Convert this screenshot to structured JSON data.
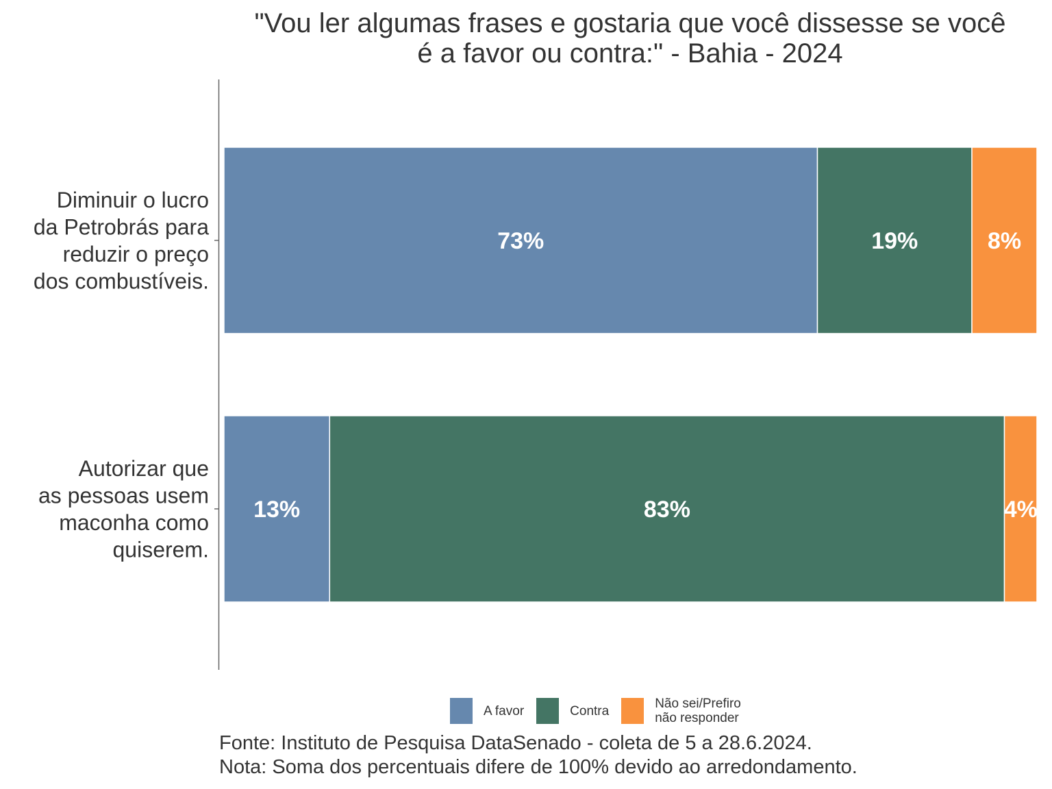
{
  "title": {
    "line1": "\"Vou ler algumas frases e gostaria que você dissesse se você",
    "line2": "é a favor ou contra:\" - Bahia - 2024"
  },
  "chart_data": {
    "type": "bar",
    "orientation": "horizontal",
    "stacked": true,
    "categories": [
      [
        "Diminuir o lucro",
        "da Petrobrás para",
        "reduzir o preço",
        "dos combustíveis."
      ],
      [
        "Autorizar que",
        "as pessoas usem",
        "maconha como",
        "quiserem."
      ]
    ],
    "series": [
      {
        "name": "A favor",
        "values": [
          73,
          13
        ],
        "color": "#6688ae"
      },
      {
        "name": "Contra",
        "values": [
          19,
          83
        ],
        "color": "#447564"
      },
      {
        "name": "Não sei/Prefiro não responder",
        "legend_lines": [
          "Não sei/Prefiro",
          "não responder"
        ],
        "values": [
          8,
          4
        ],
        "color": "#f9923e"
      }
    ],
    "data_labels": [
      [
        "73%",
        "19%",
        "8%"
      ],
      [
        "13%",
        "83%",
        "4%"
      ]
    ],
    "xlim": [
      0,
      100
    ],
    "grid": false,
    "legend_position": "bottom"
  },
  "caption": {
    "line1": "Fonte: Instituto de Pesquisa DataSenado - coleta de 5 a 28.6.2024.",
    "line2": "Nota: Soma dos percentuais difere de 100% devido ao arredondamento."
  }
}
